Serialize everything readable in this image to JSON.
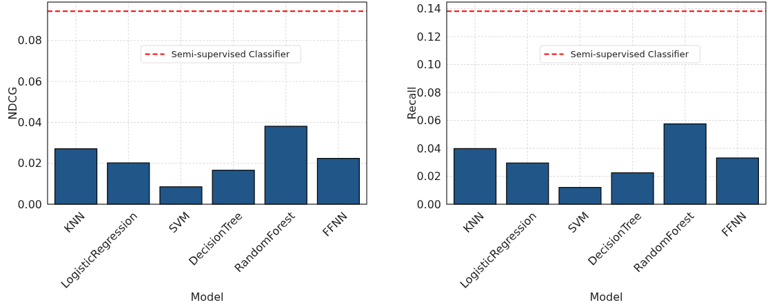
{
  "chart_data": [
    {
      "type": "bar",
      "xlabel": "Model",
      "ylabel": "NDCG",
      "categories": [
        "KNN",
        "LogisticRegression",
        "SVM",
        "DecisionTree",
        "RandomForest",
        "FFNN"
      ],
      "values": [
        0.0271,
        0.0202,
        0.0085,
        0.0166,
        0.0381,
        0.0224
      ],
      "color": "#215689",
      "ylim": [
        0,
        0.0988
      ],
      "yticks": [
        {
          "value": 0,
          "label": "0.00"
        },
        {
          "value": 0.02,
          "label": "0.02"
        },
        {
          "value": 0.04,
          "label": "0.04"
        },
        {
          "value": 0.06,
          "label": "0.06"
        },
        {
          "value": 0.08,
          "label": "0.08"
        }
      ],
      "grid": true,
      "legend": "top",
      "ref_lines": [
        {
          "axis": "y",
          "value": 0.0943,
          "label": "Semi-supervised Classifier",
          "color": "#ff0000",
          "line_style": "dashed"
        }
      ]
    },
    {
      "type": "bar",
      "xlabel": "Model",
      "ylabel": "Recall",
      "categories": [
        "KNN",
        "LogisticRegression",
        "SVM",
        "DecisionTree",
        "RandomForest",
        "FFNN"
      ],
      "values": [
        0.0398,
        0.0295,
        0.012,
        0.0225,
        0.0575,
        0.0331
      ],
      "color": "#215689",
      "ylim": [
        0,
        0.1447
      ],
      "yticks": [
        {
          "value": 0,
          "label": "0.00"
        },
        {
          "value": 0.02,
          "label": "0.02"
        },
        {
          "value": 0.04,
          "label": "0.04"
        },
        {
          "value": 0.06,
          "label": "0.06"
        },
        {
          "value": 0.08,
          "label": "0.08"
        },
        {
          "value": 0.1,
          "label": "0.10"
        },
        {
          "value": 0.12,
          "label": "0.12"
        },
        {
          "value": 0.14,
          "label": "0.14"
        }
      ],
      "grid": true,
      "legend": "top",
      "ref_lines": [
        {
          "axis": "y",
          "value": 0.1381,
          "label": "Semi-supervised Classifier",
          "color": "#ff0000",
          "line_style": "dashed"
        }
      ]
    }
  ]
}
